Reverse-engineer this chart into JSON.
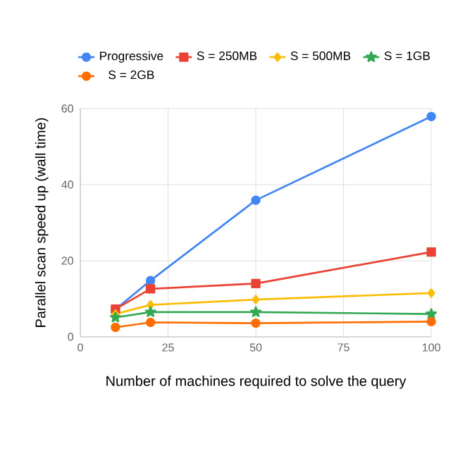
{
  "chart_data": {
    "type": "line",
    "xlabel": "Number of machines required to solve the query",
    "ylabel": "Parallel scan speed up (wall time)",
    "x": [
      10,
      20,
      50,
      100
    ],
    "series": [
      {
        "name": "Progressive",
        "color": "#4285f4",
        "marker": "circle",
        "values": [
          7.2,
          14.8,
          35.9,
          57.9
        ]
      },
      {
        "name": "S = 250MB",
        "color": "#ea4335",
        "marker": "square",
        "values": [
          7.3,
          12.6,
          14,
          22.3
        ]
      },
      {
        "name": "S = 500MB",
        "color": "#fbbc04",
        "marker": "diamond",
        "values": [
          6,
          8.4,
          9.8,
          11.5
        ]
      },
      {
        "name": "S = 1GB",
        "color": "#34a853",
        "marker": "star",
        "values": [
          5.1,
          6.5,
          6.5,
          6
        ]
      },
      {
        "name": "S = 2GB",
        "color": "#ff6d01",
        "marker": "circle",
        "values": [
          2.5,
          3.8,
          3.6,
          4
        ]
      }
    ],
    "xlim": [
      0,
      100
    ],
    "xticks": [
      0,
      25,
      50,
      75,
      100
    ],
    "ylim": [
      0,
      60
    ],
    "yticks": [
      0,
      20,
      40,
      60
    ],
    "grid": true,
    "legend": "top",
    "line_style": "solid"
  }
}
